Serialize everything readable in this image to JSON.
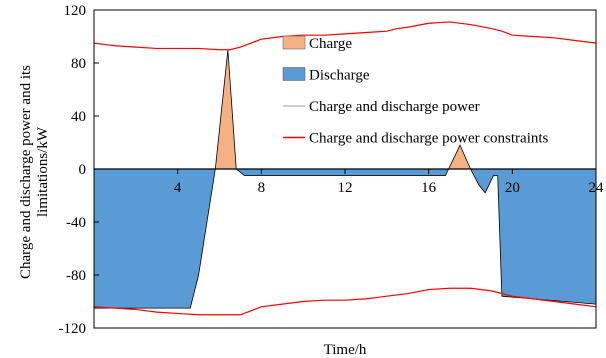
{
  "chart_data": {
    "type": "area",
    "xlabel": "Time/h",
    "ylabel": "Charge and discharge power and its limitations/kW",
    "ylabel_lines": [
      "Charge and discharge power and its",
      "limitations/kW"
    ],
    "xlim": [
      0,
      24
    ],
    "ylim": [
      -120,
      120
    ],
    "xticks": [
      4,
      8,
      12,
      16,
      20,
      24
    ],
    "yticks": [
      120,
      80,
      40,
      0,
      -40,
      -80,
      -120
    ],
    "xtick_labels": [
      "4",
      "8",
      "12",
      "16",
      "20",
      "24"
    ],
    "ytick_labels": [
      "120",
      "80",
      "40",
      "0",
      "-40",
      "-80",
      "-120"
    ],
    "grid": false,
    "legend_position": "top-right",
    "legend": [
      {
        "label": "Charge",
        "kind": "swatch",
        "color": "#F4B183"
      },
      {
        "label": "Discharge",
        "kind": "swatch",
        "color": "#5B9BD5"
      },
      {
        "label": "Charge and discharge power",
        "kind": "line",
        "color": "#BFBFBF"
      },
      {
        "label": "Charge and discharge power constraints",
        "kind": "line",
        "color": "#FF0000"
      }
    ],
    "series": [
      {
        "role": "power",
        "x": [
          0,
          4.6,
          5.0,
          5.4,
          5.8,
          6.4,
          6.8,
          7.2,
          16.8,
          17.5,
          18.0,
          18.4,
          18.7,
          19.1,
          19.3,
          19.5,
          24
        ],
        "y": [
          -105,
          -105,
          -80,
          -40,
          0,
          90,
          0,
          -5,
          -5,
          18,
          0,
          -12,
          -18,
          -5,
          -5,
          -96,
          -102
        ]
      },
      {
        "role": "upper_constraint",
        "x": [
          0,
          0.5,
          1,
          2,
          3,
          4,
          5,
          6,
          6.5,
          7,
          7.5,
          8,
          9,
          10,
          11,
          12,
          13,
          14,
          14.5,
          15,
          16,
          17,
          18,
          19,
          19.5,
          20,
          21,
          22,
          23,
          24
        ],
        "y": [
          95,
          94,
          93,
          92,
          91,
          91,
          91,
          90,
          90,
          92,
          95,
          98,
          100,
          101,
          101,
          102,
          103,
          104,
          106,
          107,
          110,
          111,
          109,
          106,
          104,
          101,
          100,
          99,
          97,
          95
        ]
      },
      {
        "role": "lower_constraint",
        "x": [
          0,
          1,
          2,
          3,
          4,
          5,
          6,
          7,
          8,
          9,
          10,
          11,
          12,
          13,
          14,
          15,
          16,
          17,
          18,
          19,
          20,
          21,
          22,
          23,
          24
        ],
        "y": [
          -104,
          -105,
          -106,
          -108,
          -109,
          -110,
          -110,
          -110,
          -104,
          -102,
          -100,
          -99,
          -99,
          -98,
          -96,
          -94,
          -91,
          -90,
          -90,
          -92,
          -96,
          -98,
          -100,
          -102,
          -104
        ]
      }
    ],
    "colors": {
      "charge": "#F4B183",
      "discharge": "#5B9BD5",
      "power_line": "#BFBFBF",
      "constraint_line": "#FF0000"
    }
  }
}
